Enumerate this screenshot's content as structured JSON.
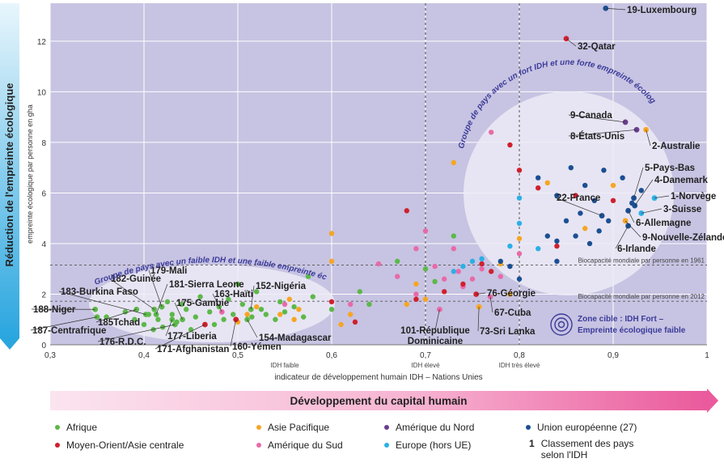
{
  "chart_data": {
    "type": "scatter",
    "title": "",
    "xlabel": "indicateur de développement humain IDH – Nations Unies",
    "ylabel": "empreinte écologique par personne en gha",
    "ylabel_main": "Réduction de l'empreinte écologique",
    "xlim": [
      0.3,
      1.0
    ],
    "ylim": [
      0,
      13.5
    ],
    "x_ticks": [
      "0,3",
      "0,4",
      "0,5",
      "0,6",
      "0,7",
      "0,8",
      "0,9",
      "1"
    ],
    "y_ticks": [
      "0",
      "2",
      "4",
      "6",
      "8",
      "10",
      "12"
    ],
    "grid": true,
    "thresholds": [
      {
        "x": 0.55,
        "label": "IDH faible"
      },
      {
        "x": 0.7,
        "label": "IDH élevé"
      },
      {
        "x": 0.8,
        "label": "IDH très élevé"
      }
    ],
    "reference_lines": [
      {
        "y": 3.15,
        "label": "Biocapacité mondiale par personne en 1961"
      },
      {
        "y": 1.72,
        "label": "Biocapacité mondiale par personne en 2012"
      }
    ],
    "groups": [
      {
        "label": "Groupe de pays avec un faible IDH et une faible empreinte écologique"
      },
      {
        "label": "Groupe de pays avec un fort IDH et une forte empreinte écologique"
      }
    ],
    "target_zone": {
      "line1": "Zone cible : IDH Fort –",
      "line2": "Empreinte écologique faible"
    },
    "series_colors": {
      "africa": "#5db84a",
      "asia": "#f5a623",
      "namerica": "#6b3d8f",
      "eu": "#1b4f93",
      "meca": "#d0202e",
      "samerica": "#e86aa8",
      "europe_non_eu": "#2bb0e6"
    },
    "annotated": [
      {
        "label": "19-Luxembourg",
        "x": 0.892,
        "y": 13.3,
        "s": "eu"
      },
      {
        "label": "32-Qatar",
        "x": 0.85,
        "y": 12.1,
        "s": "meca"
      },
      {
        "label": "9-Canada",
        "x": 0.913,
        "y": 8.8,
        "s": "namerica"
      },
      {
        "label": "8-États-Unis",
        "x": 0.925,
        "y": 8.5,
        "s": "namerica"
      },
      {
        "label": "2-Australie",
        "x": 0.935,
        "y": 8.5,
        "s": "asia"
      },
      {
        "label": "5-Pays-Bas",
        "x": 0.922,
        "y": 5.8,
        "s": "eu"
      },
      {
        "label": "4-Danemark",
        "x": 0.923,
        "y": 5.5,
        "s": "eu"
      },
      {
        "label": "1-Norvège",
        "x": 0.944,
        "y": 5.8,
        "s": "europe_non_eu"
      },
      {
        "label": "3-Suisse",
        "x": 0.93,
        "y": 5.2,
        "s": "europe_non_eu"
      },
      {
        "label": "22-France",
        "x": 0.888,
        "y": 5.1,
        "s": "eu"
      },
      {
        "label": "6-Allemagne",
        "x": 0.916,
        "y": 5.3,
        "s": "eu"
      },
      {
        "label": "9-Nouvelle-Zélande",
        "x": 0.913,
        "y": 4.9,
        "s": "asia"
      },
      {
        "label": "6-Irlande",
        "x": 0.916,
        "y": 4.7,
        "s": "eu"
      },
      {
        "label": "76-Géorgie",
        "x": 0.754,
        "y": 2.0,
        "s": "meca"
      },
      {
        "label": "67-Cuba",
        "x": 0.769,
        "y": 1.9,
        "s": "samerica"
      },
      {
        "label": "73-Sri Lanka",
        "x": 0.757,
        "y": 1.5,
        "s": "asia"
      },
      {
        "label": "101-République Dominicaine",
        "x": 0.715,
        "y": 1.4,
        "s": "samerica"
      },
      {
        "label": "152-Nigéria",
        "x": 0.514,
        "y": 1.4,
        "s": "africa"
      },
      {
        "label": "154-Madagascar",
        "x": 0.51,
        "y": 1.0,
        "s": "africa"
      },
      {
        "label": "160-Yémen",
        "x": 0.498,
        "y": 1.0,
        "s": "meca"
      },
      {
        "label": "163-Haïti",
        "x": 0.483,
        "y": 1.3,
        "s": "samerica"
      },
      {
        "label": "171-Afghanistan",
        "x": 0.465,
        "y": 0.8,
        "s": "meca"
      },
      {
        "label": "177-Liberia",
        "x": 0.43,
        "y": 1.0,
        "s": "africa"
      },
      {
        "label": "175-Gambie",
        "x": 0.441,
        "y": 1.0,
        "s": "africa"
      },
      {
        "label": "181-Sierra Leone",
        "x": 0.413,
        "y": 1.2,
        "s": "africa"
      },
      {
        "label": "179-Mali",
        "x": 0.419,
        "y": 1.5,
        "s": "africa"
      },
      {
        "label": "182-Guinée",
        "x": 0.411,
        "y": 1.4,
        "s": "africa"
      },
      {
        "label": "183-Burkina Faso",
        "x": 0.402,
        "y": 1.2,
        "s": "africa"
      },
      {
        "label": "185Tchad",
        "x": 0.392,
        "y": 1.4,
        "s": "africa"
      },
      {
        "label": "176-R.D.C.",
        "x": 0.433,
        "y": 0.8,
        "s": "africa"
      },
      {
        "label": "188-Niger",
        "x": 0.348,
        "y": 1.4,
        "s": "africa"
      },
      {
        "label": "187-Centrafrique",
        "x": 0.35,
        "y": 1.1,
        "s": "africa"
      }
    ],
    "points": [
      {
        "x": 0.36,
        "y": 1.1,
        "s": "africa"
      },
      {
        "x": 0.38,
        "y": 1.3,
        "s": "africa"
      },
      {
        "x": 0.39,
        "y": 1.0,
        "s": "africa"
      },
      {
        "x": 0.4,
        "y": 0.8,
        "s": "africa"
      },
      {
        "x": 0.405,
        "y": 1.2,
        "s": "africa"
      },
      {
        "x": 0.41,
        "y": 0.6,
        "s": "africa"
      },
      {
        "x": 0.415,
        "y": 1.0,
        "s": "africa"
      },
      {
        "x": 0.42,
        "y": 0.7,
        "s": "africa"
      },
      {
        "x": 0.425,
        "y": 1.7,
        "s": "africa"
      },
      {
        "x": 0.43,
        "y": 1.2,
        "s": "africa"
      },
      {
        "x": 0.435,
        "y": 0.9,
        "s": "africa"
      },
      {
        "x": 0.44,
        "y": 1.6,
        "s": "africa"
      },
      {
        "x": 0.445,
        "y": 1.4,
        "s": "africa"
      },
      {
        "x": 0.45,
        "y": 0.6,
        "s": "africa"
      },
      {
        "x": 0.455,
        "y": 1.1,
        "s": "africa"
      },
      {
        "x": 0.46,
        "y": 1.9,
        "s": "africa"
      },
      {
        "x": 0.47,
        "y": 1.3,
        "s": "africa"
      },
      {
        "x": 0.475,
        "y": 0.8,
        "s": "africa"
      },
      {
        "x": 0.48,
        "y": 1.5,
        "s": "africa"
      },
      {
        "x": 0.485,
        "y": 1.0,
        "s": "africa"
      },
      {
        "x": 0.49,
        "y": 1.8,
        "s": "africa"
      },
      {
        "x": 0.495,
        "y": 1.2,
        "s": "africa"
      },
      {
        "x": 0.5,
        "y": 2.4,
        "s": "africa"
      },
      {
        "x": 0.505,
        "y": 1.6,
        "s": "africa"
      },
      {
        "x": 0.515,
        "y": 1.1,
        "s": "africa"
      },
      {
        "x": 0.52,
        "y": 2.1,
        "s": "africa"
      },
      {
        "x": 0.525,
        "y": 1.4,
        "s": "africa"
      },
      {
        "x": 0.53,
        "y": 1.2,
        "s": "africa"
      },
      {
        "x": 0.54,
        "y": 1.0,
        "s": "africa"
      },
      {
        "x": 0.545,
        "y": 1.7,
        "s": "africa"
      },
      {
        "x": 0.55,
        "y": 1.3,
        "s": "africa"
      },
      {
        "x": 0.56,
        "y": 1.5,
        "s": "africa"
      },
      {
        "x": 0.57,
        "y": 1.1,
        "s": "africa"
      },
      {
        "x": 0.575,
        "y": 2.7,
        "s": "africa"
      },
      {
        "x": 0.58,
        "y": 1.9,
        "s": "africa"
      },
      {
        "x": 0.6,
        "y": 1.4,
        "s": "africa"
      },
      {
        "x": 0.63,
        "y": 2.1,
        "s": "africa"
      },
      {
        "x": 0.64,
        "y": 1.6,
        "s": "africa"
      },
      {
        "x": 0.67,
        "y": 3.3,
        "s": "africa"
      },
      {
        "x": 0.7,
        "y": 3.0,
        "s": "africa"
      },
      {
        "x": 0.71,
        "y": 2.5,
        "s": "africa"
      },
      {
        "x": 0.73,
        "y": 4.3,
        "s": "africa"
      },
      {
        "x": 0.5,
        "y": 0.9,
        "s": "asia"
      },
      {
        "x": 0.51,
        "y": 1.2,
        "s": "asia"
      },
      {
        "x": 0.52,
        "y": 1.5,
        "s": "asia"
      },
      {
        "x": 0.545,
        "y": 1.2,
        "s": "asia"
      },
      {
        "x": 0.555,
        "y": 1.8,
        "s": "asia"
      },
      {
        "x": 0.56,
        "y": 1.0,
        "s": "asia"
      },
      {
        "x": 0.565,
        "y": 1.4,
        "s": "asia"
      },
      {
        "x": 0.6,
        "y": 4.4,
        "s": "asia"
      },
      {
        "x": 0.6,
        "y": 3.3,
        "s": "asia"
      },
      {
        "x": 0.61,
        "y": 0.8,
        "s": "asia"
      },
      {
        "x": 0.62,
        "y": 1.2,
        "s": "asia"
      },
      {
        "x": 0.68,
        "y": 1.6,
        "s": "asia"
      },
      {
        "x": 0.69,
        "y": 2.4,
        "s": "asia"
      },
      {
        "x": 0.7,
        "y": 1.8,
        "s": "asia"
      },
      {
        "x": 0.73,
        "y": 7.2,
        "s": "asia"
      },
      {
        "x": 0.78,
        "y": 3.2,
        "s": "asia"
      },
      {
        "x": 0.79,
        "y": 2.0,
        "s": "asia"
      },
      {
        "x": 0.8,
        "y": 4.2,
        "s": "asia"
      },
      {
        "x": 0.83,
        "y": 6.4,
        "s": "asia"
      },
      {
        "x": 0.87,
        "y": 4.6,
        "s": "asia"
      },
      {
        "x": 0.9,
        "y": 6.3,
        "s": "asia"
      },
      {
        "x": 0.55,
        "y": 1.6,
        "s": "samerica"
      },
      {
        "x": 0.62,
        "y": 1.6,
        "s": "samerica"
      },
      {
        "x": 0.65,
        "y": 3.2,
        "s": "samerica"
      },
      {
        "x": 0.67,
        "y": 2.7,
        "s": "samerica"
      },
      {
        "x": 0.69,
        "y": 3.8,
        "s": "samerica"
      },
      {
        "x": 0.69,
        "y": 2.0,
        "s": "samerica"
      },
      {
        "x": 0.7,
        "y": 4.5,
        "s": "samerica"
      },
      {
        "x": 0.71,
        "y": 3.1,
        "s": "samerica"
      },
      {
        "x": 0.72,
        "y": 2.6,
        "s": "samerica"
      },
      {
        "x": 0.73,
        "y": 3.8,
        "s": "samerica"
      },
      {
        "x": 0.735,
        "y": 2.9,
        "s": "samerica"
      },
      {
        "x": 0.74,
        "y": 2.3,
        "s": "samerica"
      },
      {
        "x": 0.75,
        "y": 2.6,
        "s": "samerica"
      },
      {
        "x": 0.76,
        "y": 3.0,
        "s": "samerica"
      },
      {
        "x": 0.77,
        "y": 8.4,
        "s": "samerica"
      },
      {
        "x": 0.78,
        "y": 2.7,
        "s": "samerica"
      },
      {
        "x": 0.8,
        "y": 3.6,
        "s": "samerica"
      },
      {
        "x": 0.6,
        "y": 1.7,
        "s": "meca"
      },
      {
        "x": 0.625,
        "y": 0.9,
        "s": "meca"
      },
      {
        "x": 0.68,
        "y": 5.3,
        "s": "meca"
      },
      {
        "x": 0.69,
        "y": 1.8,
        "s": "meca"
      },
      {
        "x": 0.72,
        "y": 2.1,
        "s": "meca"
      },
      {
        "x": 0.74,
        "y": 2.4,
        "s": "meca"
      },
      {
        "x": 0.76,
        "y": 3.2,
        "s": "meca"
      },
      {
        "x": 0.77,
        "y": 2.9,
        "s": "meca"
      },
      {
        "x": 0.79,
        "y": 7.9,
        "s": "meca"
      },
      {
        "x": 0.8,
        "y": 6.9,
        "s": "meca"
      },
      {
        "x": 0.82,
        "y": 6.2,
        "s": "meca"
      },
      {
        "x": 0.84,
        "y": 3.9,
        "s": "meca"
      },
      {
        "x": 0.86,
        "y": 5.9,
        "s": "meca"
      },
      {
        "x": 0.9,
        "y": 5.7,
        "s": "meca"
      },
      {
        "x": 0.73,
        "y": 2.9,
        "s": "europe_non_eu"
      },
      {
        "x": 0.74,
        "y": 3.1,
        "s": "europe_non_eu"
      },
      {
        "x": 0.75,
        "y": 3.3,
        "s": "europe_non_eu"
      },
      {
        "x": 0.76,
        "y": 3.4,
        "s": "europe_non_eu"
      },
      {
        "x": 0.79,
        "y": 3.9,
        "s": "europe_non_eu"
      },
      {
        "x": 0.8,
        "y": 5.8,
        "s": "europe_non_eu"
      },
      {
        "x": 0.8,
        "y": 4.8,
        "s": "europe_non_eu"
      },
      {
        "x": 0.82,
        "y": 3.8,
        "s": "europe_non_eu"
      },
      {
        "x": 0.78,
        "y": 3.3,
        "s": "eu"
      },
      {
        "x": 0.79,
        "y": 3.1,
        "s": "eu"
      },
      {
        "x": 0.8,
        "y": 2.6,
        "s": "eu"
      },
      {
        "x": 0.82,
        "y": 6.6,
        "s": "eu"
      },
      {
        "x": 0.83,
        "y": 4.3,
        "s": "eu"
      },
      {
        "x": 0.84,
        "y": 5.9,
        "s": "eu"
      },
      {
        "x": 0.84,
        "y": 4.1,
        "s": "eu"
      },
      {
        "x": 0.85,
        "y": 4.9,
        "s": "eu"
      },
      {
        "x": 0.855,
        "y": 7.0,
        "s": "eu"
      },
      {
        "x": 0.86,
        "y": 4.3,
        "s": "eu"
      },
      {
        "x": 0.865,
        "y": 5.2,
        "s": "eu"
      },
      {
        "x": 0.87,
        "y": 6.3,
        "s": "eu"
      },
      {
        "x": 0.875,
        "y": 4.0,
        "s": "eu"
      },
      {
        "x": 0.88,
        "y": 5.7,
        "s": "eu"
      },
      {
        "x": 0.885,
        "y": 4.5,
        "s": "eu"
      },
      {
        "x": 0.89,
        "y": 6.9,
        "s": "eu"
      },
      {
        "x": 0.895,
        "y": 4.9,
        "s": "eu"
      },
      {
        "x": 0.91,
        "y": 6.6,
        "s": "eu"
      },
      {
        "x": 0.92,
        "y": 5.6,
        "s": "eu"
      },
      {
        "x": 0.93,
        "y": 6.1,
        "s": "eu"
      },
      {
        "x": 0.84,
        "y": 3.3,
        "s": "eu"
      }
    ]
  },
  "banner": "Développement du capital humain",
  "legend": {
    "items": [
      {
        "label": "Afrique",
        "color": "#5db84a"
      },
      {
        "label": "Asie Pacifique",
        "color": "#f5a623"
      },
      {
        "label": "Amérique du Nord",
        "color": "#6b3d8f"
      },
      {
        "label": "Union européenne (27)",
        "color": "#1b4f93"
      },
      {
        "label": "Moyen-Orient/Asie centrale",
        "color": "#d0202e"
      },
      {
        "label": "Amérique du Sud",
        "color": "#e86aa8"
      },
      {
        "label": "Europe (hors UE)",
        "color": "#2bb0e6"
      }
    ],
    "rank_note": {
      "symbol": "1",
      "line1": "Classement des pays",
      "line2": "selon l'IDH"
    }
  }
}
